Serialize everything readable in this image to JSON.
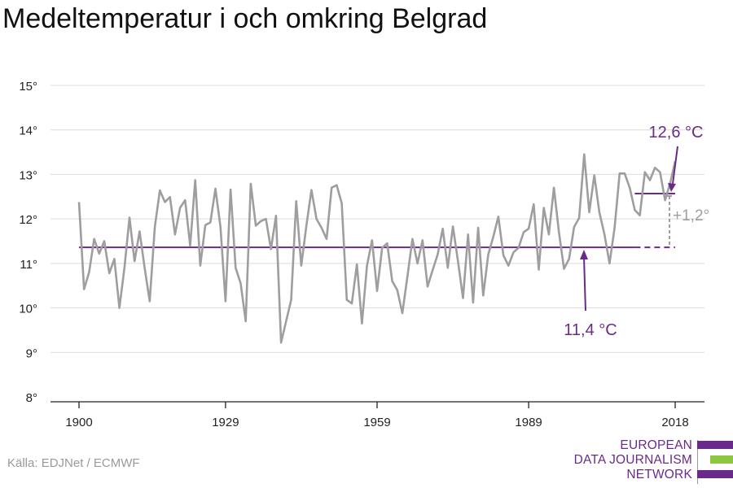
{
  "title": "Medeltemperatur i och omkring Belgrad",
  "source": "Källa: EDJNet / ECMWF",
  "logo": {
    "lines": [
      "EUROPEAN",
      "DATA JOURNALISM",
      "NETWORK"
    ],
    "colors": [
      "#6a2a8a",
      "#8dc63f",
      "#6a2a8a"
    ]
  },
  "colors": {
    "series": "#9e9e9e",
    "accent": "#6a2a8a",
    "grid": "#dcdcdc",
    "axis": "#222222"
  },
  "chart_data": {
    "type": "line",
    "title": "Medeltemperatur i och omkring Belgrad",
    "xlabel": "",
    "ylabel": "",
    "x_ticks": [
      1900,
      1929,
      1959,
      1989,
      2018
    ],
    "y_ticks": [
      8,
      9,
      10,
      11,
      12,
      13,
      14,
      15
    ],
    "y_tick_labels": [
      "8°",
      "9°",
      "10°",
      "11°",
      "12°",
      "13°",
      "14°",
      "15°"
    ],
    "xlim": [
      1900,
      2018
    ],
    "ylim": [
      8,
      15
    ],
    "grid": true,
    "series": [
      {
        "x": [
          1900,
          1901,
          1902,
          1903,
          1904,
          1905,
          1906,
          1907,
          1908,
          1909,
          1910,
          1911,
          1912,
          1913,
          1914,
          1915,
          1916,
          1917,
          1918,
          1919,
          1920,
          1921,
          1922,
          1923,
          1924,
          1925,
          1926,
          1927,
          1928,
          1929,
          1930,
          1931,
          1932,
          1933,
          1934,
          1935,
          1936,
          1937,
          1938,
          1939,
          1940,
          1941,
          1942,
          1943,
          1944,
          1945,
          1946,
          1947,
          1948,
          1949,
          1950,
          1951,
          1952,
          1953,
          1954,
          1955,
          1956,
          1957,
          1958,
          1959,
          1960,
          1961,
          1962,
          1963,
          1964,
          1965,
          1966,
          1967,
          1968,
          1969,
          1970,
          1971,
          1972,
          1973,
          1974,
          1975,
          1976,
          1977,
          1978,
          1979,
          1980,
          1981,
          1982,
          1983,
          1984,
          1985,
          1986,
          1987,
          1988,
          1989,
          1990,
          1991,
          1992,
          1993,
          1994,
          1995,
          1996,
          1997,
          1998,
          1999,
          2000,
          2001,
          2002,
          2003,
          2004,
          2005,
          2006,
          2007,
          2008,
          2009,
          2010,
          2011,
          2012,
          2013,
          2014,
          2015,
          2016,
          2017,
          2018
        ],
        "values": [
          12.38,
          10.42,
          10.8,
          11.55,
          11.22,
          11.5,
          10.78,
          11.1,
          10.0,
          10.9,
          12.03,
          11.05,
          11.72,
          10.9,
          10.15,
          11.82,
          12.64,
          12.38,
          12.49,
          11.65,
          12.25,
          12.42,
          11.4,
          12.87,
          10.95,
          11.86,
          11.92,
          12.68,
          11.82,
          10.15,
          12.66,
          10.9,
          10.55,
          9.7,
          12.79,
          11.85,
          11.95,
          12.0,
          11.32,
          12.07,
          9.22,
          9.7,
          10.18,
          12.4,
          10.95,
          11.85,
          12.65,
          12.0,
          11.8,
          11.55,
          12.7,
          12.76,
          12.35,
          10.18,
          10.1,
          10.98,
          9.65,
          10.95,
          11.52,
          10.38,
          11.35,
          11.45,
          10.6,
          10.4,
          9.88,
          10.7,
          11.55,
          11.0,
          11.52,
          10.48,
          10.85,
          11.2,
          11.78,
          10.9,
          11.83,
          11.05,
          10.22,
          11.65,
          10.12,
          11.8,
          10.28,
          11.2,
          11.6,
          12.05,
          11.18,
          10.95,
          11.25,
          11.35,
          11.7,
          11.78,
          12.33,
          10.86,
          12.25,
          11.65,
          12.7,
          11.7,
          10.88,
          11.1,
          11.82,
          12.02,
          13.45,
          12.15,
          12.98,
          12.15,
          11.65,
          11.0,
          11.8,
          13.02,
          13.02,
          12.7,
          12.2,
          12.08,
          13.05,
          12.87,
          13.15,
          13.05,
          12.42,
          12.8,
          13.3
        ]
      }
    ],
    "reference_lines": [
      {
        "label": "11,4 °C",
        "value": 11.36,
        "from": 1900,
        "to": 2018,
        "solid_to": 2010
      },
      {
        "label": "12,6 °C",
        "value": 12.57,
        "from": 2010,
        "to": 2018
      }
    ],
    "difference_label": "+1,2°"
  }
}
